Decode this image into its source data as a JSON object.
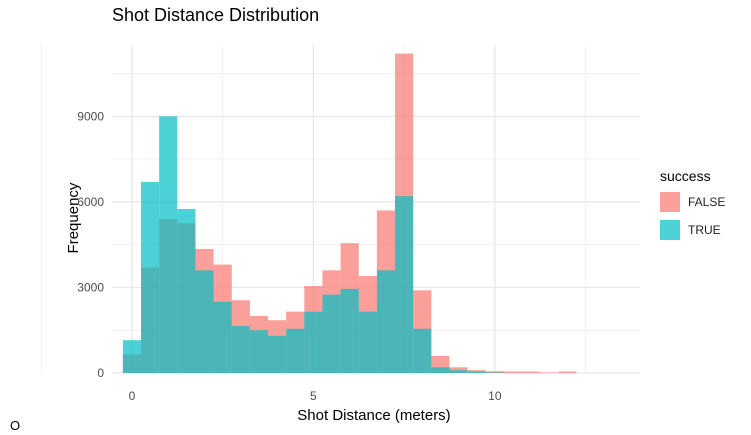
{
  "colors": {
    "FALSE": "#F8766D",
    "TRUE": "#00BFC4",
    "grid": "#e6e6e6",
    "tick": "#4d4d4d"
  },
  "chart_data": {
    "type": "bar",
    "subtype": "overlapping-histogram",
    "title": "Shot Distance Distribution",
    "xlabel": "Shot Distance (meters)",
    "ylabel": "Frequency",
    "x_ticks": [
      0,
      5,
      10
    ],
    "y_ticks": [
      0,
      3000,
      6000,
      9000
    ],
    "xlim": [
      -0.55,
      14
    ],
    "ylim": [
      0,
      11500
    ],
    "bin_width": 0.5,
    "bin_starts": [
      -0.25,
      0.25,
      0.75,
      1.25,
      1.75,
      2.25,
      2.75,
      3.25,
      3.75,
      4.25,
      4.75,
      5.25,
      5.75,
      6.25,
      6.75,
      7.25,
      7.75,
      8.25,
      8.75,
      9.25,
      9.75,
      10.25,
      10.75,
      11.25,
      11.75,
      12.25,
      12.75
    ],
    "series": [
      {
        "name": "FALSE",
        "values": [
          650,
          3700,
          5400,
          5250,
          4350,
          3800,
          2550,
          2000,
          1850,
          2150,
          3050,
          3600,
          4550,
          3400,
          5700,
          11200,
          2900,
          600,
          200,
          100,
          60,
          50,
          50,
          20,
          50,
          0,
          0
        ]
      },
      {
        "name": "TRUE",
        "values": [
          1150,
          6700,
          9000,
          5750,
          3600,
          2500,
          1650,
          1500,
          1300,
          1550,
          2150,
          2750,
          2950,
          2150,
          3600,
          6200,
          1550,
          200,
          100,
          50,
          20,
          0,
          0,
          0,
          0,
          0,
          0
        ]
      }
    ],
    "legend": {
      "title": "success",
      "entries": [
        "FALSE",
        "TRUE"
      ],
      "position": "right"
    },
    "grid": true
  },
  "footer": {
    "mark": "O"
  }
}
